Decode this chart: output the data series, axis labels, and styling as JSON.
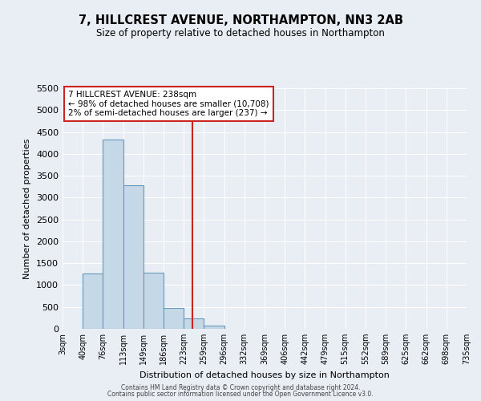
{
  "title": "7, HILLCREST AVENUE, NORTHAMPTON, NN3 2AB",
  "subtitle": "Size of property relative to detached houses in Northampton",
  "xlabel": "Distribution of detached houses by size in Northampton",
  "ylabel": "Number of detached properties",
  "bin_edges": [
    3,
    40,
    76,
    113,
    149,
    186,
    223,
    259,
    296,
    332,
    369,
    406,
    442,
    479,
    515,
    552,
    589,
    625,
    662,
    698,
    735
  ],
  "bar_heights": [
    0,
    1260,
    4330,
    3280,
    1280,
    480,
    230,
    70,
    0,
    0,
    0,
    0,
    0,
    0,
    0,
    0,
    0,
    0,
    0,
    0
  ],
  "bar_color": "#c5d8e8",
  "bar_edge_color": "#6699bb",
  "property_size": 238,
  "vline_color": "#cc2222",
  "annotation_title": "7 HILLCREST AVENUE: 238sqm",
  "annotation_line1": "← 98% of detached houses are smaller (10,708)",
  "annotation_line2": "2% of semi-detached houses are larger (237) →",
  "annotation_box_color": "#ffffff",
  "annotation_box_edge": "#cc2222",
  "ylim": [
    0,
    5500
  ],
  "yticks": [
    0,
    500,
    1000,
    1500,
    2000,
    2500,
    3000,
    3500,
    4000,
    4500,
    5000,
    5500
  ],
  "background_color": "#e8eef4",
  "grid_color": "#ffffff",
  "footer_line1": "Contains HM Land Registry data © Crown copyright and database right 2024.",
  "footer_line2": "Contains public sector information licensed under the Open Government Licence v3.0."
}
